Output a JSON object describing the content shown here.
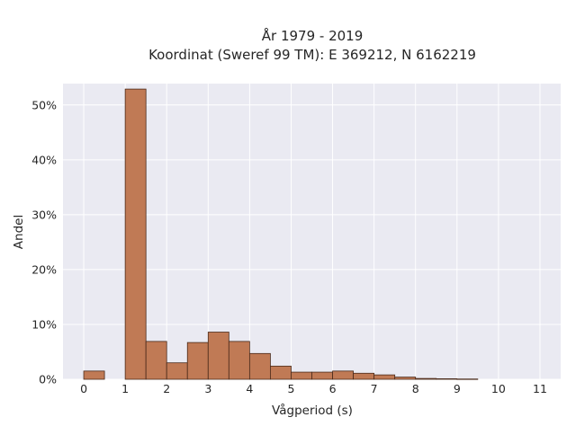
{
  "chart_data": {
    "type": "bar",
    "title_lines": [
      "År 1979 - 2019",
      "Koordinat (Sweref 99 TM): E 369212, N 6162219"
    ],
    "xlabel": "Vågperiod (s)",
    "ylabel": "Andel",
    "bin_width": 0.5,
    "bins": [
      {
        "start": 0.0,
        "value": 1.5
      },
      {
        "start": 1.0,
        "value": 52.9
      },
      {
        "start": 1.5,
        "value": 6.9
      },
      {
        "start": 2.0,
        "value": 3.0
      },
      {
        "start": 2.5,
        "value": 6.7
      },
      {
        "start": 3.0,
        "value": 8.6
      },
      {
        "start": 3.5,
        "value": 6.9
      },
      {
        "start": 4.0,
        "value": 4.7
      },
      {
        "start": 4.5,
        "value": 2.4
      },
      {
        "start": 5.0,
        "value": 1.3
      },
      {
        "start": 5.5,
        "value": 1.3
      },
      {
        "start": 6.0,
        "value": 1.5
      },
      {
        "start": 6.5,
        "value": 1.1
      },
      {
        "start": 7.0,
        "value": 0.8
      },
      {
        "start": 7.5,
        "value": 0.4
      },
      {
        "start": 8.0,
        "value": 0.15
      },
      {
        "start": 8.5,
        "value": 0.1
      },
      {
        "start": 9.0,
        "value": 0.05
      }
    ],
    "xlim": [
      -0.5,
      11.5
    ],
    "ylim": [
      0,
      53.9
    ],
    "xticks": [
      0,
      1,
      2,
      3,
      4,
      5,
      6,
      7,
      8,
      9,
      10,
      11
    ],
    "xtick_labels": [
      "0",
      "1",
      "2",
      "3",
      "4",
      "5",
      "6",
      "7",
      "8",
      "9",
      "10",
      "11"
    ],
    "yticks": [
      0,
      10,
      20,
      30,
      40,
      50
    ],
    "ytick_labels": [
      "0%",
      "10%",
      "20%",
      "30%",
      "40%",
      "50%"
    ],
    "grid": true,
    "colors": {
      "bar_fill": "#c07a55",
      "bar_edge": "#4a2a1a",
      "plot_background": "#eaeaf2",
      "grid": "#ffffff",
      "text": "#262626"
    }
  }
}
